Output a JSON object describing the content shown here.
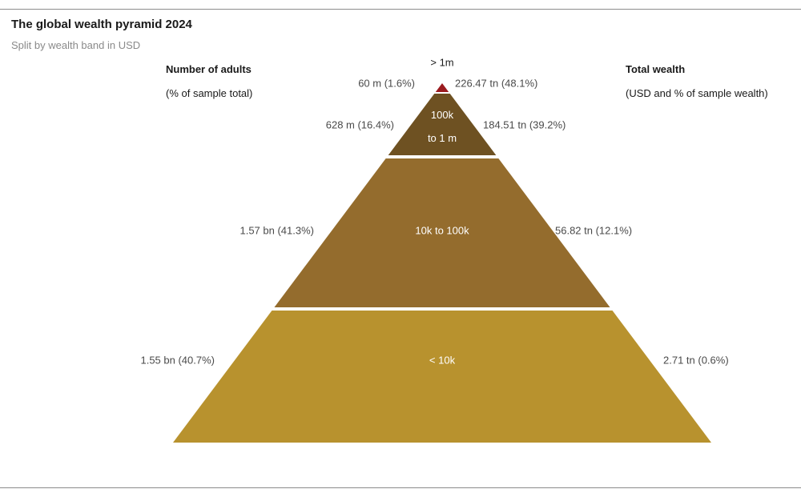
{
  "header": {
    "title": "The global wealth pyramid 2024",
    "subtitle": "Split by wealth band in USD"
  },
  "left_column": {
    "heading": "Number of adults",
    "subheading": "(% of sample total)"
  },
  "right_column": {
    "heading": "Total wealth",
    "subheading": "(USD and % of sample wealth)"
  },
  "chart_data": {
    "type": "pyramid",
    "title": "The global wealth pyramid 2024",
    "subtitle": "Split by wealth band in USD",
    "bands": [
      {
        "band": "> 1m",
        "adults": "60 m (1.6%)",
        "adults_millions": 60,
        "adults_pct": 1.6,
        "wealth": "226.47 tn (48.1%)",
        "wealth_trillions": 226.47,
        "wealth_pct": 48.1,
        "color": "#9b1b1f"
      },
      {
        "band": "100k to 1 m",
        "band_lines": [
          "100k",
          "to 1 m"
        ],
        "adults": "628 m (16.4%)",
        "adults_millions": 628,
        "adults_pct": 16.4,
        "wealth": "184.51 tn (39.2%)",
        "wealth_trillions": 184.51,
        "wealth_pct": 39.2,
        "color": "#6e5122"
      },
      {
        "band": "10k to 100k",
        "adults": "1.57 bn (41.3%)",
        "adults_millions": 1570,
        "adults_pct": 41.3,
        "wealth": "56.82 tn (12.1%)",
        "wealth_trillions": 56.82,
        "wealth_pct": 12.1,
        "color": "#946c2d"
      },
      {
        "band": "< 10k",
        "adults": "1.55 bn (40.7%)",
        "adults_millions": 1550,
        "adults_pct": 40.7,
        "wealth": "2.71 tn (0.6%)",
        "wealth_trillions": 2.71,
        "wealth_pct": 0.6,
        "color": "#b8922e"
      }
    ]
  }
}
